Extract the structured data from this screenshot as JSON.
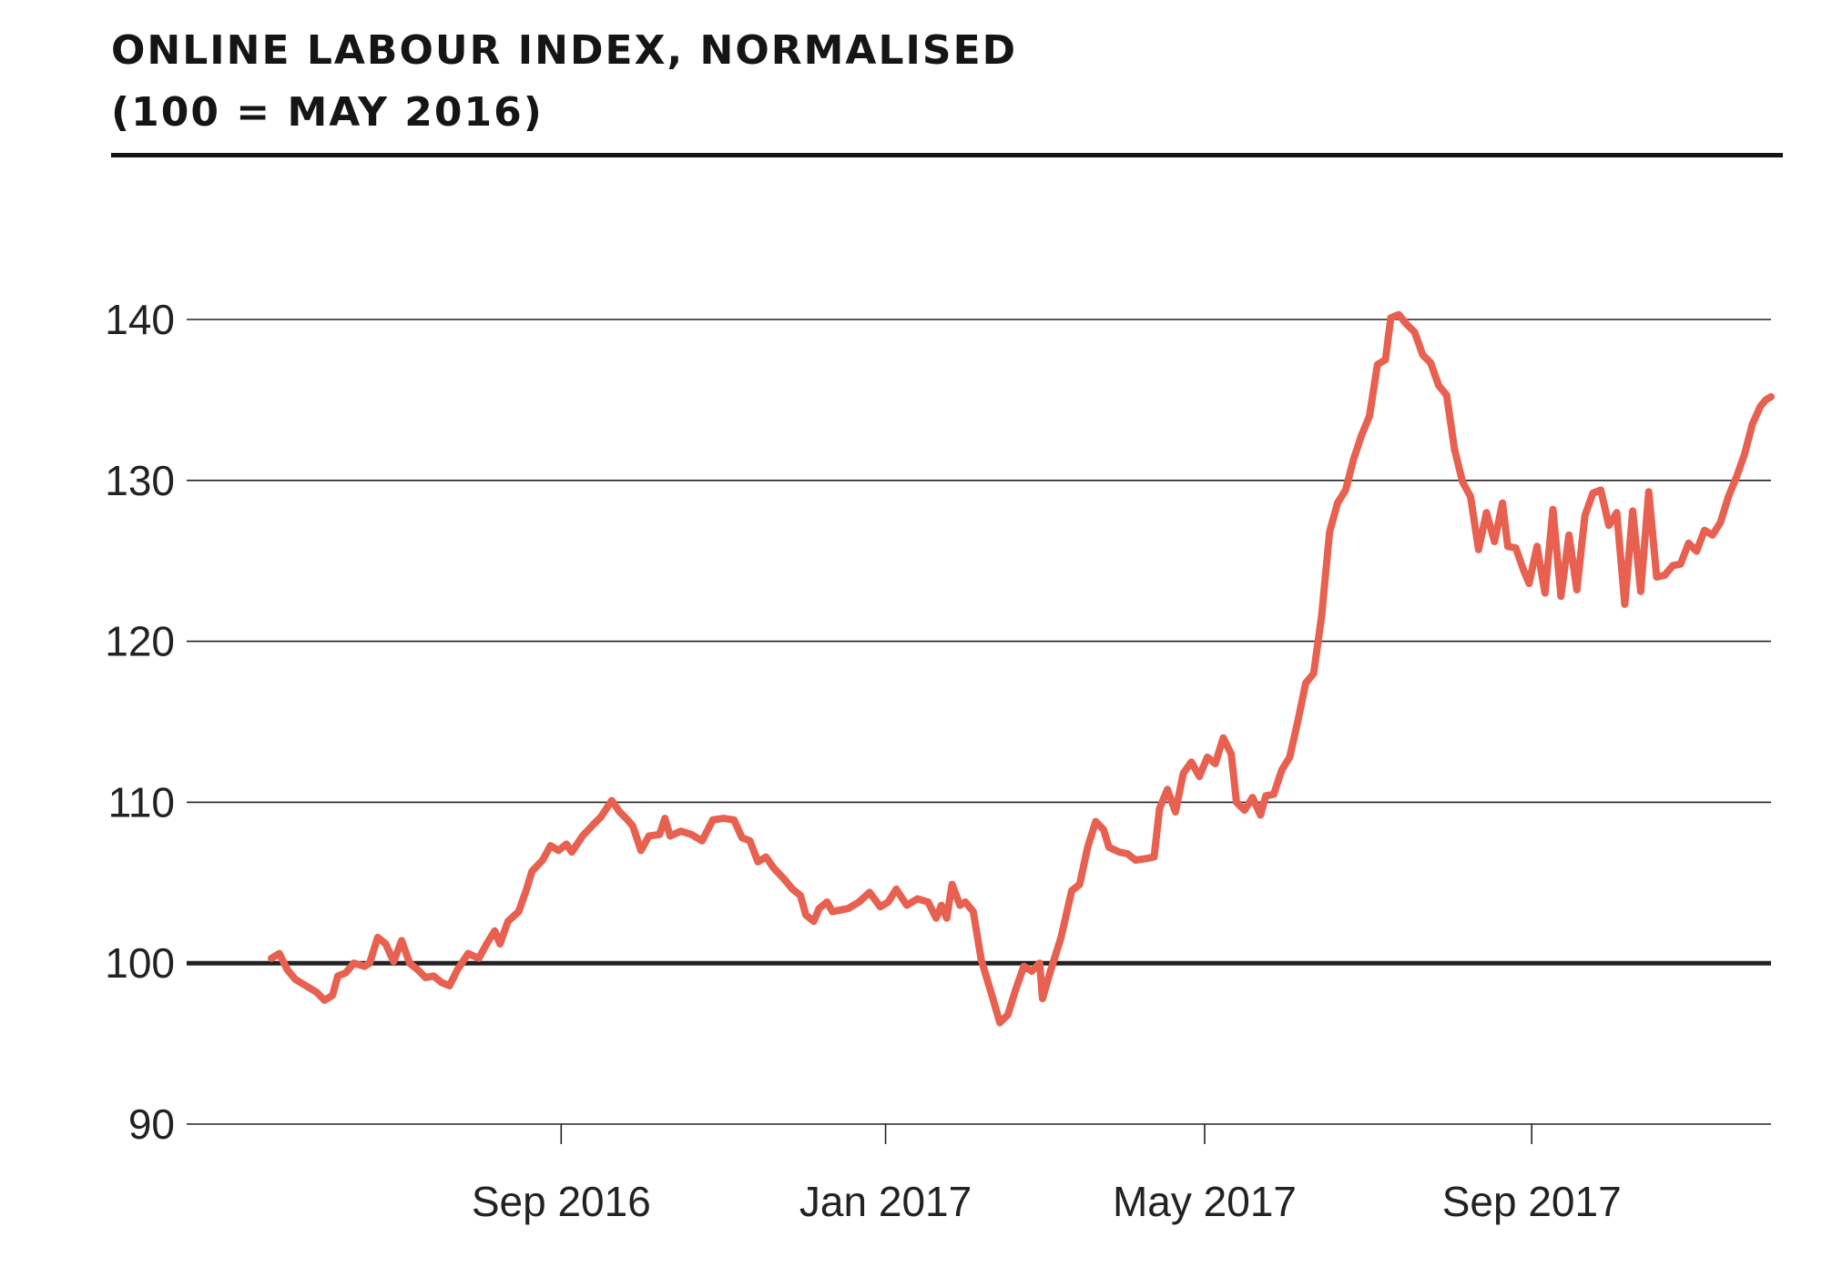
{
  "header": {
    "title_line1": "ONLINE LABOUR INDEX, NORMALISED",
    "title_line2": "(100 = MAY 2016)"
  },
  "colors": {
    "series": "#e8604f",
    "text": "#151515",
    "grid": "#222222"
  },
  "chart_data": {
    "type": "line",
    "title": "ONLINE LABOUR INDEX, NORMALISED (100 = MAY 2016)",
    "xlabel": "",
    "ylabel": "",
    "ylim": [
      90,
      140
    ],
    "yticks": [
      90,
      100,
      110,
      120,
      130,
      140
    ],
    "ytick_labels": [
      "90",
      "100",
      "110",
      "120",
      "130",
      "140"
    ],
    "xlim": [
      "2016-05-15",
      "2017-11-30"
    ],
    "xticks": [
      "2016-09-01",
      "2017-01-01",
      "2017-05-01",
      "2017-09-01"
    ],
    "xtick_labels": [
      "Sep 2016",
      "Jan 2017",
      "May 2017",
      "Sep 2017"
    ],
    "reference_line": 100,
    "grid": "horizontal",
    "legend": "none",
    "series": [
      {
        "values": [
          [
            "2016-05-15",
            100.3
          ],
          [
            "2016-05-18",
            100.6
          ],
          [
            "2016-05-21",
            99.6
          ],
          [
            "2016-05-24",
            99.0
          ],
          [
            "2016-05-28",
            98.6
          ],
          [
            "2016-06-01",
            98.2
          ],
          [
            "2016-06-04",
            97.7
          ],
          [
            "2016-06-07",
            98.0
          ],
          [
            "2016-06-09",
            99.2
          ],
          [
            "2016-06-12",
            99.4
          ],
          [
            "2016-06-15",
            100.0
          ],
          [
            "2016-06-19",
            99.8
          ],
          [
            "2016-06-21",
            100.0
          ],
          [
            "2016-06-24",
            101.6
          ],
          [
            "2016-06-27",
            101.2
          ],
          [
            "2016-06-30",
            100.1
          ],
          [
            "2016-07-03",
            101.4
          ],
          [
            "2016-07-06",
            100.0
          ],
          [
            "2016-07-09",
            99.6
          ],
          [
            "2016-07-12",
            99.1
          ],
          [
            "2016-07-15",
            99.2
          ],
          [
            "2016-07-18",
            98.8
          ],
          [
            "2016-07-21",
            98.6
          ],
          [
            "2016-07-24",
            99.6
          ],
          [
            "2016-07-28",
            100.6
          ],
          [
            "2016-08-01",
            100.3
          ],
          [
            "2016-08-04",
            101.2
          ],
          [
            "2016-08-07",
            102.0
          ],
          [
            "2016-08-09",
            101.2
          ],
          [
            "2016-08-12",
            102.6
          ],
          [
            "2016-08-16",
            103.2
          ],
          [
            "2016-08-19",
            104.6
          ],
          [
            "2016-08-21",
            105.7
          ],
          [
            "2016-08-25",
            106.4
          ],
          [
            "2016-08-28",
            107.3
          ],
          [
            "2016-08-31",
            107.0
          ],
          [
            "2016-09-03",
            107.4
          ],
          [
            "2016-09-05",
            106.9
          ],
          [
            "2016-09-09",
            107.9
          ],
          [
            "2016-09-13",
            108.6
          ],
          [
            "2016-09-16",
            109.1
          ],
          [
            "2016-09-20",
            110.1
          ],
          [
            "2016-09-23",
            109.4
          ],
          [
            "2016-09-26",
            108.9
          ],
          [
            "2016-09-28",
            108.5
          ],
          [
            "2016-10-01",
            107.0
          ],
          [
            "2016-10-04",
            107.9
          ],
          [
            "2016-10-08",
            108.0
          ],
          [
            "2016-10-10",
            109.0
          ],
          [
            "2016-10-12",
            107.9
          ],
          [
            "2016-10-16",
            108.2
          ],
          [
            "2016-10-20",
            108.0
          ],
          [
            "2016-10-24",
            107.6
          ],
          [
            "2016-10-28",
            108.9
          ],
          [
            "2016-11-01",
            109.0
          ],
          [
            "2016-11-05",
            108.9
          ],
          [
            "2016-11-08",
            107.8
          ],
          [
            "2016-11-11",
            107.6
          ],
          [
            "2016-11-14",
            106.3
          ],
          [
            "2016-11-17",
            106.6
          ],
          [
            "2016-11-20",
            105.9
          ],
          [
            "2016-11-24",
            105.2
          ],
          [
            "2016-11-27",
            104.6
          ],
          [
            "2016-11-30",
            104.2
          ],
          [
            "2016-12-02",
            103.0
          ],
          [
            "2016-12-05",
            102.6
          ],
          [
            "2016-12-07",
            103.4
          ],
          [
            "2016-12-10",
            103.8
          ],
          [
            "2016-12-12",
            103.2
          ],
          [
            "2016-12-18",
            103.4
          ],
          [
            "2016-12-22",
            103.8
          ],
          [
            "2016-12-26",
            104.4
          ],
          [
            "2016-12-30",
            103.5
          ],
          [
            "2017-01-02",
            103.8
          ],
          [
            "2017-01-05",
            104.6
          ],
          [
            "2017-01-09",
            103.6
          ],
          [
            "2017-01-13",
            104.0
          ],
          [
            "2017-01-17",
            103.8
          ],
          [
            "2017-01-20",
            102.8
          ],
          [
            "2017-01-22",
            103.6
          ],
          [
            "2017-01-24",
            102.8
          ],
          [
            "2017-01-26",
            104.9
          ],
          [
            "2017-01-29",
            103.6
          ],
          [
            "2017-01-31",
            103.8
          ],
          [
            "2017-02-03",
            103.2
          ],
          [
            "2017-02-06",
            100.2
          ],
          [
            "2017-02-10",
            98.0
          ],
          [
            "2017-02-13",
            96.3
          ],
          [
            "2017-02-16",
            96.8
          ],
          [
            "2017-02-19",
            98.4
          ],
          [
            "2017-02-22",
            99.8
          ],
          [
            "2017-02-25",
            99.5
          ],
          [
            "2017-02-28",
            100.0
          ],
          [
            "2017-03-01",
            97.8
          ],
          [
            "2017-03-04",
            99.5
          ],
          [
            "2017-03-08",
            101.6
          ],
          [
            "2017-03-12",
            104.5
          ],
          [
            "2017-03-15",
            104.9
          ],
          [
            "2017-03-18",
            107.2
          ],
          [
            "2017-03-21",
            108.8
          ],
          [
            "2017-03-24",
            108.3
          ],
          [
            "2017-03-26",
            107.2
          ],
          [
            "2017-03-30",
            106.9
          ],
          [
            "2017-04-02",
            106.8
          ],
          [
            "2017-04-05",
            106.4
          ],
          [
            "2017-04-09",
            106.5
          ],
          [
            "2017-04-12",
            106.6
          ],
          [
            "2017-04-14",
            109.6
          ],
          [
            "2017-04-17",
            110.8
          ],
          [
            "2017-04-20",
            109.4
          ],
          [
            "2017-04-23",
            111.8
          ],
          [
            "2017-04-26",
            112.5
          ],
          [
            "2017-04-29",
            111.6
          ],
          [
            "2017-05-02",
            112.8
          ],
          [
            "2017-05-05",
            112.4
          ],
          [
            "2017-05-08",
            114.0
          ],
          [
            "2017-05-11",
            113.0
          ],
          [
            "2017-05-13",
            110.0
          ],
          [
            "2017-05-16",
            109.5
          ],
          [
            "2017-05-19",
            110.3
          ],
          [
            "2017-05-22",
            109.2
          ],
          [
            "2017-05-24",
            110.4
          ],
          [
            "2017-05-27",
            110.5
          ],
          [
            "2017-05-30",
            112.0
          ],
          [
            "2017-06-02",
            112.8
          ],
          [
            "2017-06-05",
            115.0
          ],
          [
            "2017-06-08",
            117.4
          ],
          [
            "2017-06-11",
            118.0
          ],
          [
            "2017-06-14",
            121.6
          ],
          [
            "2017-06-17",
            126.8
          ],
          [
            "2017-06-20",
            128.6
          ],
          [
            "2017-06-23",
            129.4
          ],
          [
            "2017-06-26",
            131.3
          ],
          [
            "2017-06-29",
            132.8
          ],
          [
            "2017-07-02",
            134.0
          ],
          [
            "2017-07-05",
            137.2
          ],
          [
            "2017-07-08",
            137.5
          ],
          [
            "2017-07-10",
            140.1
          ],
          [
            "2017-07-13",
            140.3
          ],
          [
            "2017-07-16",
            139.7
          ],
          [
            "2017-07-19",
            139.2
          ],
          [
            "2017-07-22",
            137.8
          ],
          [
            "2017-07-25",
            137.3
          ],
          [
            "2017-07-28",
            135.9
          ],
          [
            "2017-07-31",
            135.3
          ],
          [
            "2017-08-03",
            131.9
          ],
          [
            "2017-08-06",
            129.9
          ],
          [
            "2017-08-09",
            129.0
          ],
          [
            "2017-08-12",
            125.7
          ],
          [
            "2017-08-15",
            128.0
          ],
          [
            "2017-08-18",
            126.2
          ],
          [
            "2017-08-21",
            128.6
          ],
          [
            "2017-08-23",
            125.9
          ],
          [
            "2017-08-26",
            125.8
          ],
          [
            "2017-08-29",
            124.4
          ],
          [
            "2017-08-31",
            123.6
          ],
          [
            "2017-09-03",
            125.9
          ],
          [
            "2017-09-06",
            123.0
          ],
          [
            "2017-09-09",
            128.2
          ],
          [
            "2017-09-12",
            122.8
          ],
          [
            "2017-09-15",
            126.6
          ],
          [
            "2017-09-18",
            123.2
          ],
          [
            "2017-09-21",
            127.8
          ],
          [
            "2017-09-24",
            129.2
          ],
          [
            "2017-09-27",
            129.4
          ],
          [
            "2017-09-30",
            127.2
          ],
          [
            "2017-10-03",
            128.0
          ],
          [
            "2017-10-06",
            122.3
          ],
          [
            "2017-10-09",
            128.1
          ],
          [
            "2017-10-12",
            123.1
          ],
          [
            "2017-10-15",
            129.3
          ],
          [
            "2017-10-18",
            124.0
          ],
          [
            "2017-10-21",
            124.1
          ],
          [
            "2017-10-24",
            124.7
          ],
          [
            "2017-10-27",
            124.8
          ],
          [
            "2017-10-30",
            126.1
          ],
          [
            "2017-11-02",
            125.6
          ],
          [
            "2017-11-05",
            126.9
          ],
          [
            "2017-11-08",
            126.6
          ],
          [
            "2017-11-11",
            127.4
          ],
          [
            "2017-11-14",
            129.0
          ],
          [
            "2017-11-17",
            130.2
          ],
          [
            "2017-11-20",
            131.6
          ],
          [
            "2017-11-23",
            133.5
          ],
          [
            "2017-11-26",
            134.6
          ],
          [
            "2017-11-28",
            135.0
          ],
          [
            "2017-11-30",
            135.2
          ]
        ]
      }
    ]
  }
}
